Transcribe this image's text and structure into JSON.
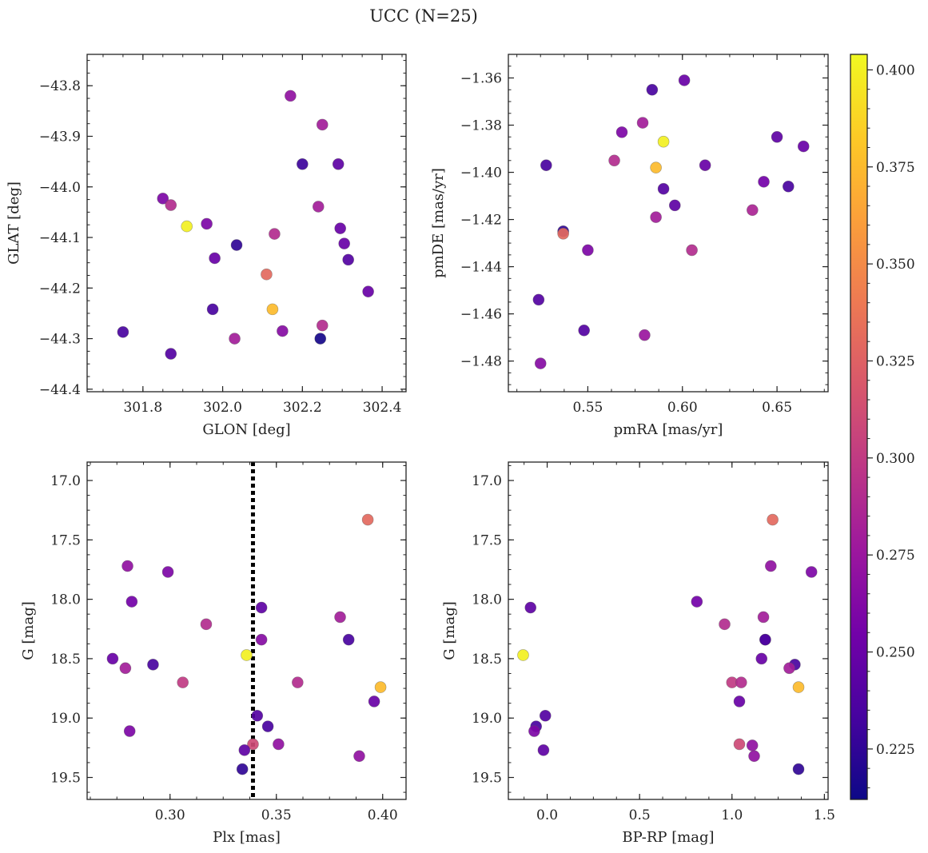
{
  "chart_data": {
    "title": "UCC (N=25)",
    "colorbar": {
      "range": [
        0.212,
        0.404
      ],
      "ticks": [
        0.225,
        0.25,
        0.275,
        0.3,
        0.325,
        0.35,
        0.375,
        0.4
      ],
      "tick_labels": [
        "0.225",
        "0.250",
        "0.275",
        "0.300",
        "0.325",
        "0.350",
        "0.375",
        "0.400"
      ]
    },
    "colormap": [
      "#0d0887",
      "#46039f",
      "#7201a8",
      "#9c179e",
      "#bd3786",
      "#d8576b",
      "#ed7953",
      "#fb9f3a",
      "#fdca26",
      "#f0f921"
    ],
    "panels": [
      {
        "id": "glon-glat",
        "type": "scatter",
        "xlabel": "GLON [deg]",
        "ylabel": "GLAT [deg]",
        "xlim": [
          301.66,
          302.46
        ],
        "ylim": [
          -44.405,
          -43.738
        ],
        "x_ticks": [
          301.8,
          302.0,
          302.2,
          302.4
        ],
        "x_tick_labels": [
          "301.8",
          "302.0",
          "302.2",
          "302.4"
        ],
        "y_ticks": [
          -43.8,
          -43.9,
          -44.0,
          -44.1,
          -44.2,
          -44.3,
          -44.4
        ],
        "y_tick_labels": [
          "−43.8",
          "−43.9",
          "−44.0",
          "−44.1",
          "−44.2",
          "−44.3",
          "−44.4"
        ],
        "points": [
          {
            "x": 302.17,
            "y": -43.82,
            "c": 0.27
          },
          {
            "x": 302.25,
            "y": -43.877,
            "c": 0.28
          },
          {
            "x": 302.2,
            "y": -43.955,
            "c": 0.23
          },
          {
            "x": 302.29,
            "y": -43.955,
            "c": 0.245
          },
          {
            "x": 301.85,
            "y": -44.023,
            "c": 0.26
          },
          {
            "x": 301.87,
            "y": -44.036,
            "c": 0.29
          },
          {
            "x": 302.24,
            "y": -44.039,
            "c": 0.28
          },
          {
            "x": 301.91,
            "y": -44.078,
            "c": 0.4
          },
          {
            "x": 301.96,
            "y": -44.073,
            "c": 0.26
          },
          {
            "x": 302.295,
            "y": -44.082,
            "c": 0.25
          },
          {
            "x": 302.13,
            "y": -44.093,
            "c": 0.29
          },
          {
            "x": 302.035,
            "y": -44.115,
            "c": 0.225
          },
          {
            "x": 302.305,
            "y": -44.112,
            "c": 0.25
          },
          {
            "x": 301.98,
            "y": -44.141,
            "c": 0.25
          },
          {
            "x": 302.315,
            "y": -44.144,
            "c": 0.24
          },
          {
            "x": 302.11,
            "y": -44.173,
            "c": 0.33
          },
          {
            "x": 302.365,
            "y": -44.207,
            "c": 0.25
          },
          {
            "x": 302.125,
            "y": -44.242,
            "c": 0.375
          },
          {
            "x": 301.975,
            "y": -44.242,
            "c": 0.235
          },
          {
            "x": 302.25,
            "y": -44.274,
            "c": 0.29
          },
          {
            "x": 301.75,
            "y": -44.287,
            "c": 0.235
          },
          {
            "x": 302.15,
            "y": -44.285,
            "c": 0.265
          },
          {
            "x": 302.03,
            "y": -44.3,
            "c": 0.28
          },
          {
            "x": 302.245,
            "y": -44.3,
            "c": 0.215
          },
          {
            "x": 301.87,
            "y": -44.33,
            "c": 0.24
          }
        ]
      },
      {
        "id": "pmra-pmde",
        "type": "scatter",
        "xlabel": "pmRA [mas/yr]",
        "ylabel": "pmDE [mas/yr]",
        "xlim": [
          0.508,
          0.677
        ],
        "ylim": [
          -1.493,
          -1.35
        ],
        "x_ticks": [
          0.55,
          0.6,
          0.65
        ],
        "x_tick_labels": [
          "0.55",
          "0.60",
          "0.65"
        ],
        "y_ticks": [
          -1.36,
          -1.38,
          -1.4,
          -1.42,
          -1.44,
          -1.46,
          -1.48
        ],
        "y_tick_labels": [
          "−1.36",
          "−1.38",
          "−1.40",
          "−1.42",
          "−1.44",
          "−1.46",
          "−1.48"
        ],
        "points": [
          {
            "x": 0.601,
            "y": -1.361,
            "c": 0.25
          },
          {
            "x": 0.584,
            "y": -1.365,
            "c": 0.235
          },
          {
            "x": 0.579,
            "y": -1.379,
            "c": 0.28
          },
          {
            "x": 0.568,
            "y": -1.383,
            "c": 0.26
          },
          {
            "x": 0.59,
            "y": -1.387,
            "c": 0.4
          },
          {
            "x": 0.65,
            "y": -1.385,
            "c": 0.245
          },
          {
            "x": 0.664,
            "y": -1.389,
            "c": 0.25
          },
          {
            "x": 0.528,
            "y": -1.397,
            "c": 0.235
          },
          {
            "x": 0.564,
            "y": -1.395,
            "c": 0.29
          },
          {
            "x": 0.586,
            "y": -1.398,
            "c": 0.375
          },
          {
            "x": 0.612,
            "y": -1.397,
            "c": 0.25
          },
          {
            "x": 0.59,
            "y": -1.407,
            "c": 0.24
          },
          {
            "x": 0.643,
            "y": -1.404,
            "c": 0.255
          },
          {
            "x": 0.656,
            "y": -1.406,
            "c": 0.235
          },
          {
            "x": 0.596,
            "y": -1.414,
            "c": 0.245
          },
          {
            "x": 0.637,
            "y": -1.416,
            "c": 0.285
          },
          {
            "x": 0.586,
            "y": -1.419,
            "c": 0.28
          },
          {
            "x": 0.537,
            "y": -1.425,
            "c": 0.225
          },
          {
            "x": 0.537,
            "y": -1.426,
            "c": 0.33
          },
          {
            "x": 0.55,
            "y": -1.433,
            "c": 0.26
          },
          {
            "x": 0.605,
            "y": -1.433,
            "c": 0.29
          },
          {
            "x": 0.524,
            "y": -1.454,
            "c": 0.24
          },
          {
            "x": 0.548,
            "y": -1.467,
            "c": 0.24
          },
          {
            "x": 0.58,
            "y": -1.469,
            "c": 0.275
          },
          {
            "x": 0.525,
            "y": -1.481,
            "c": 0.265
          }
        ]
      },
      {
        "id": "plx-g",
        "type": "scatter",
        "xlabel": "Plx [mas]",
        "ylabel": "G [mag]",
        "xlim": [
          0.261,
          0.411
        ],
        "ylim": [
          19.685,
          16.845
        ],
        "x_ticks": [
          0.3,
          0.35,
          0.4
        ],
        "x_tick_labels": [
          "0.30",
          "0.35",
          "0.40"
        ],
        "y_ticks": [
          17.0,
          17.5,
          18.0,
          18.5,
          19.0,
          19.5
        ],
        "y_tick_labels": [
          "17.0",
          "17.5",
          "18.0",
          "18.5",
          "19.0",
          "19.5"
        ],
        "vline": {
          "x": 0.339,
          "style": "dotted",
          "color": "#000000"
        },
        "points": [
          {
            "x": 0.393,
            "y": 17.33,
            "c": 0.33
          },
          {
            "x": 0.28,
            "y": 17.72,
            "c": 0.27
          },
          {
            "x": 0.299,
            "y": 17.77,
            "c": 0.26
          },
          {
            "x": 0.282,
            "y": 18.02,
            "c": 0.255
          },
          {
            "x": 0.343,
            "y": 18.07,
            "c": 0.245
          },
          {
            "x": 0.38,
            "y": 18.15,
            "c": 0.28
          },
          {
            "x": 0.317,
            "y": 18.21,
            "c": 0.29
          },
          {
            "x": 0.343,
            "y": 18.34,
            "c": 0.265
          },
          {
            "x": 0.384,
            "y": 18.34,
            "c": 0.235
          },
          {
            "x": 0.336,
            "y": 18.47,
            "c": 0.4
          },
          {
            "x": 0.273,
            "y": 18.5,
            "c": 0.25
          },
          {
            "x": 0.292,
            "y": 18.55,
            "c": 0.235
          },
          {
            "x": 0.279,
            "y": 18.58,
            "c": 0.28
          },
          {
            "x": 0.306,
            "y": 18.7,
            "c": 0.3
          },
          {
            "x": 0.36,
            "y": 18.7,
            "c": 0.29
          },
          {
            "x": 0.399,
            "y": 18.74,
            "c": 0.375
          },
          {
            "x": 0.396,
            "y": 18.86,
            "c": 0.25
          },
          {
            "x": 0.341,
            "y": 18.98,
            "c": 0.24
          },
          {
            "x": 0.346,
            "y": 19.07,
            "c": 0.235
          },
          {
            "x": 0.281,
            "y": 19.11,
            "c": 0.26
          },
          {
            "x": 0.339,
            "y": 19.22,
            "c": 0.31
          },
          {
            "x": 0.351,
            "y": 19.22,
            "c": 0.27
          },
          {
            "x": 0.335,
            "y": 19.27,
            "c": 0.245
          },
          {
            "x": 0.389,
            "y": 19.32,
            "c": 0.27
          },
          {
            "x": 0.334,
            "y": 19.43,
            "c": 0.225
          }
        ]
      },
      {
        "id": "bprp-g",
        "type": "scatter",
        "xlabel": "BP-RP [mag]",
        "ylabel": "G [mag]",
        "xlim": [
          -0.21,
          1.52
        ],
        "ylim": [
          19.685,
          16.845
        ],
        "x_ticks": [
          0.0,
          0.5,
          1.0,
          1.5
        ],
        "x_tick_labels": [
          "0.0",
          "0.5",
          "1.0",
          "1.5"
        ],
        "y_ticks": [
          17.0,
          17.5,
          18.0,
          18.5,
          19.0,
          19.5
        ],
        "y_tick_labels": [
          "17.0",
          "17.5",
          "18.0",
          "18.5",
          "19.0",
          "19.5"
        ],
        "points": [
          {
            "x": 1.22,
            "y": 17.33,
            "c": 0.33
          },
          {
            "x": 1.21,
            "y": 17.72,
            "c": 0.27
          },
          {
            "x": 1.43,
            "y": 17.77,
            "c": 0.26
          },
          {
            "x": 0.81,
            "y": 18.02,
            "c": 0.255
          },
          {
            "x": -0.09,
            "y": 18.07,
            "c": 0.245
          },
          {
            "x": 1.17,
            "y": 18.15,
            "c": 0.28
          },
          {
            "x": 0.96,
            "y": 18.21,
            "c": 0.29
          },
          {
            "x": 1.18,
            "y": 18.34,
            "c": 0.265
          },
          {
            "x": 1.18,
            "y": 18.34,
            "c": 0.235
          },
          {
            "x": -0.13,
            "y": 18.47,
            "c": 0.4
          },
          {
            "x": 1.16,
            "y": 18.5,
            "c": 0.25
          },
          {
            "x": 1.34,
            "y": 18.55,
            "c": 0.235
          },
          {
            "x": 1.31,
            "y": 18.58,
            "c": 0.28
          },
          {
            "x": 1.0,
            "y": 18.7,
            "c": 0.3
          },
          {
            "x": 1.05,
            "y": 18.7,
            "c": 0.29
          },
          {
            "x": 1.36,
            "y": 18.74,
            "c": 0.375
          },
          {
            "x": 1.04,
            "y": 18.86,
            "c": 0.25
          },
          {
            "x": -0.01,
            "y": 18.98,
            "c": 0.24
          },
          {
            "x": -0.06,
            "y": 19.07,
            "c": 0.235
          },
          {
            "x": -0.07,
            "y": 19.11,
            "c": 0.26
          },
          {
            "x": 1.04,
            "y": 19.22,
            "c": 0.31
          },
          {
            "x": 1.11,
            "y": 19.23,
            "c": 0.27
          },
          {
            "x": -0.02,
            "y": 19.27,
            "c": 0.245
          },
          {
            "x": 1.12,
            "y": 19.32,
            "c": 0.27
          },
          {
            "x": 1.36,
            "y": 19.43,
            "c": 0.225
          }
        ]
      }
    ]
  }
}
